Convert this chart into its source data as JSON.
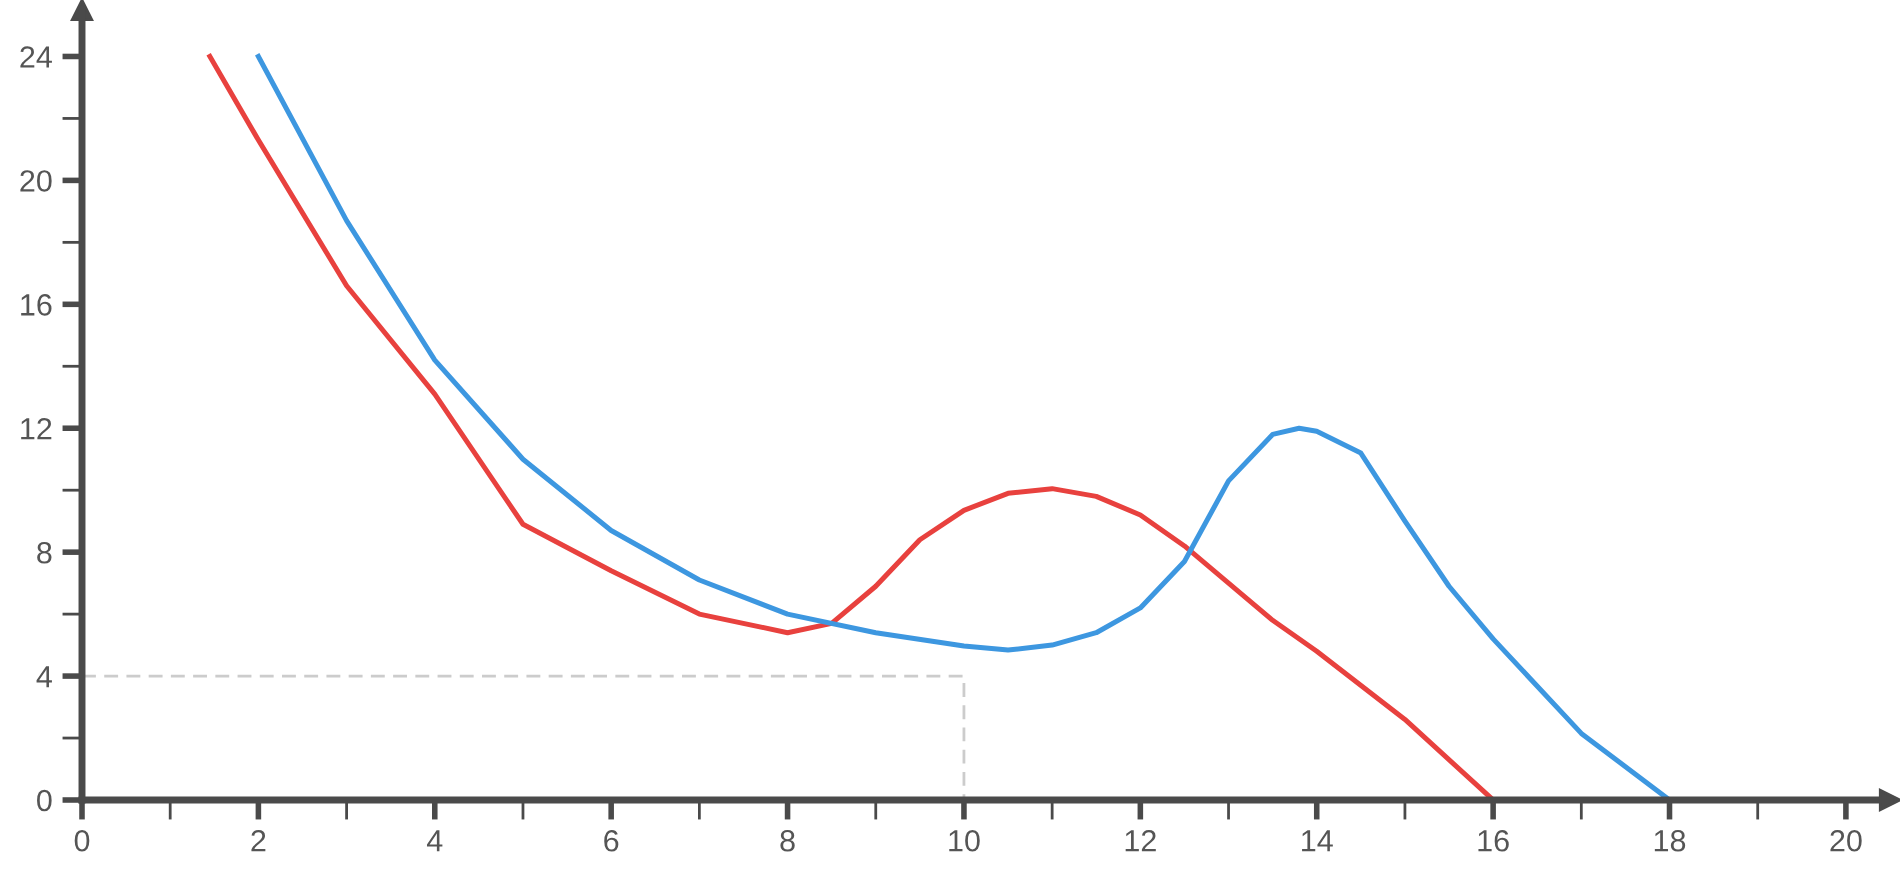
{
  "chart_data": {
    "type": "line",
    "xlim": [
      0,
      20.5
    ],
    "ylim": [
      0,
      25.5
    ],
    "xticks": [
      0,
      {
        "value": 1,
        "label": null
      },
      2,
      {
        "value": 3,
        "label": null
      },
      4,
      {
        "value": 5,
        "label": null
      },
      6,
      {
        "value": 7,
        "label": null
      },
      8,
      {
        "value": 9,
        "label": null
      },
      10,
      {
        "value": 11,
        "label": null
      },
      12,
      {
        "value": 13,
        "label": null
      },
      14,
      {
        "value": 15,
        "label": null
      },
      16,
      {
        "value": 17,
        "label": null
      },
      18,
      {
        "value": 19,
        "label": null
      },
      20
    ],
    "yticks": [
      0,
      {
        "value": 2,
        "label": null
      },
      4,
      {
        "value": 6,
        "label": null
      },
      8,
      {
        "value": 10,
        "label": null
      },
      12,
      {
        "value": 14,
        "label": null
      },
      16,
      {
        "value": 18,
        "label": null
      },
      20,
      {
        "value": 22,
        "label": null
      },
      24
    ],
    "grid": false,
    "legend": false,
    "series": [
      {
        "color": "#cccccc",
        "line_style": "dashed",
        "x": [
          0,
          10,
          10
        ],
        "values": [
          4,
          4,
          0
        ]
      },
      {
        "color": "#e8413e",
        "line_style": "solid",
        "x": [
          1.45,
          2,
          3,
          4,
          5,
          6,
          7,
          8,
          8.5,
          9,
          9.5,
          10,
          10.5,
          11,
          11.5,
          12,
          12.5,
          13,
          13.5,
          14,
          15,
          16
        ],
        "values": [
          24,
          21.3,
          16.6,
          13.1,
          8.9,
          7.4,
          6.0,
          5.4,
          5.7,
          6.9,
          8.4,
          9.35,
          9.9,
          10.05,
          9.8,
          9.2,
          8.2,
          7.0,
          5.8,
          4.8,
          2.6,
          0
        ]
      },
      {
        "color": "#3d97e0",
        "line_style": "solid",
        "x": [
          2,
          3,
          4,
          5,
          6,
          7,
          8,
          9,
          10,
          10.5,
          11,
          11.5,
          12,
          12.5,
          13,
          13.5,
          13.8,
          14,
          14.5,
          15,
          15.5,
          16,
          17,
          18
        ],
        "values": [
          24,
          18.7,
          14.2,
          11.0,
          8.7,
          7.1,
          6.0,
          5.4,
          4.97,
          4.84,
          5.0,
          5.4,
          6.2,
          7.7,
          10.3,
          11.8,
          12.0,
          11.9,
          11.2,
          9.0,
          6.9,
          5.2,
          2.15,
          0
        ]
      }
    ]
  }
}
